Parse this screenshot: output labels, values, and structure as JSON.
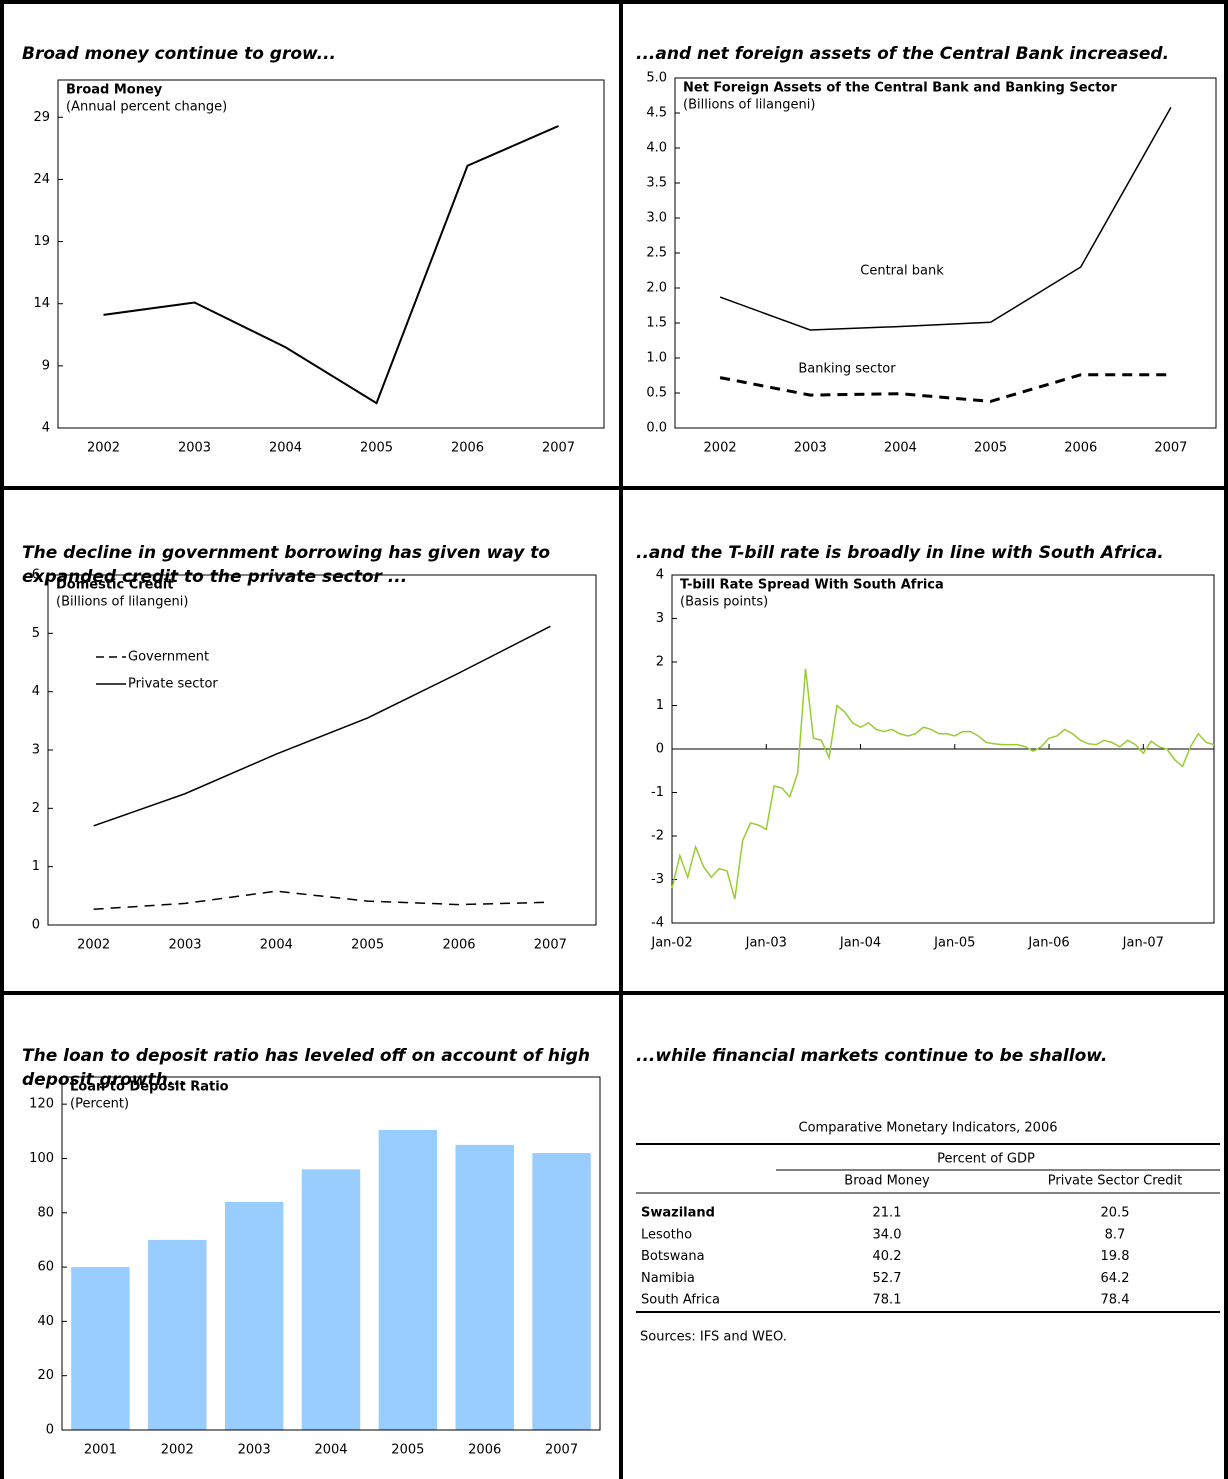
{
  "headings": [
    "Broad money continue to grow...",
    "...and net foreign assets of the Central Bank increased.",
    "The decline in government borrowing has given way to expanded credit to the private sector ...",
    "..and the T-bill rate is broadly in line with South Africa.",
    "The loan to deposit ratio has leveled off on account of high deposit growth...",
    "...while financial markets continue to be shallow."
  ],
  "chart_data": [
    {
      "type": "line",
      "title": "Broad Money",
      "subtitle": "(Annual percent change)",
      "categories": [
        "2002",
        "2003",
        "2004",
        "2005",
        "2006",
        "2007"
      ],
      "values": [
        13.1,
        14.1,
        10.5,
        6.0,
        25.1,
        28.3
      ],
      "color": "#000000",
      "ylim": [
        4,
        32
      ],
      "yticks": [
        4,
        9,
        14,
        19,
        24,
        29
      ]
    },
    {
      "type": "line",
      "title": "Net Foreign Assets of the Central Bank and Banking Sector",
      "subtitle": "(Billions of lilangeni)",
      "categories": [
        "2002",
        "2003",
        "2004",
        "2005",
        "2006",
        "2007"
      ],
      "series": [
        {
          "name": "Central bank",
          "color": "#000000",
          "values": [
            1.87,
            1.4,
            1.45,
            1.51,
            2.3,
            4.58
          ]
        },
        {
          "name": "Banking sector",
          "color": "#000000",
          "dashed": true,
          "values": [
            0.72,
            0.47,
            0.49,
            0.38,
            0.76,
            0.76
          ]
        }
      ],
      "ylim": [
        0,
        5
      ],
      "yticks": [
        {
          "value": 0,
          "label": "0.0"
        },
        0.5,
        {
          "value": 1,
          "label": "1.0"
        },
        1.5,
        {
          "value": 2,
          "label": "2.0"
        },
        2.5,
        {
          "value": 3,
          "label": "3.0"
        },
        3.5,
        {
          "value": 4,
          "label": "4.0"
        },
        4.5,
        {
          "value": 5,
          "label": "5.0"
        }
      ]
    },
    {
      "type": "line",
      "title": "Domestic Credit",
      "subtitle": "(Billions of lilangeni)",
      "categories": [
        "2002",
        "2003",
        "2004",
        "2005",
        "2006",
        "2007"
      ],
      "series": [
        {
          "name": "Government",
          "color": "#000000",
          "dashed": true,
          "values": [
            0.27,
            0.37,
            0.58,
            0.41,
            0.35,
            0.39
          ]
        },
        {
          "name": "Private sector",
          "color": "#000000",
          "values": [
            1.7,
            2.25,
            2.93,
            3.55,
            4.32,
            5.12
          ]
        }
      ],
      "ylim": [
        0,
        6
      ],
      "yticks": [
        0,
        1,
        2,
        3,
        4,
        5,
        6
      ],
      "legend": "upper left"
    },
    {
      "type": "line",
      "title": "T-bill Rate Spread With South Africa",
      "subtitle": "(Basis points)",
      "categories": [
        "Jan-02",
        null,
        null,
        null,
        null,
        null,
        null,
        null,
        null,
        null,
        null,
        null,
        "Jan-03",
        null,
        null,
        null,
        null,
        null,
        null,
        null,
        null,
        null,
        null,
        null,
        "Jan-04",
        null,
        null,
        null,
        null,
        null,
        null,
        null,
        null,
        null,
        null,
        null,
        "Jan-05",
        null,
        null,
        null,
        null,
        null,
        null,
        null,
        null,
        null,
        null,
        null,
        "Jan-06",
        null,
        null,
        null,
        null,
        null,
        null,
        null,
        null,
        null,
        null,
        null,
        "Jan-07",
        null,
        null,
        null,
        null,
        null,
        null,
        null,
        null,
        null
      ],
      "values": [
        -3.2,
        -2.45,
        -2.95,
        -2.25,
        -2.7,
        -2.95,
        -2.75,
        -2.8,
        -3.45,
        -2.1,
        -1.7,
        -1.75,
        -1.85,
        -0.85,
        -0.9,
        -1.1,
        -0.55,
        1.85,
        0.25,
        0.2,
        -0.2,
        1.0,
        0.85,
        0.6,
        0.5,
        0.6,
        0.45,
        0.4,
        0.45,
        0.35,
        0.3,
        0.35,
        0.5,
        0.45,
        0.35,
        0.35,
        0.3,
        0.4,
        0.4,
        0.3,
        0.15,
        0.12,
        0.1,
        0.1,
        0.1,
        0.05,
        -0.05,
        0.05,
        0.25,
        0.3,
        0.45,
        0.35,
        0.2,
        0.12,
        0.1,
        0.2,
        0.15,
        0.05,
        0.2,
        0.1,
        -0.1,
        0.18,
        0.05,
        0.0,
        -0.25,
        -0.4,
        0.05,
        0.35,
        0.15,
        0.1
      ],
      "color": "#99cc33",
      "ylim": [
        -4,
        4
      ],
      "yticks": [
        -4,
        -3,
        -2,
        -1,
        0,
        1,
        2,
        3,
        4
      ]
    },
    {
      "type": "bar",
      "title": "Loan to Deposit Ratio",
      "subtitle": "(Percent)",
      "categories": [
        "2001",
        "2002",
        "2003",
        "2004",
        "2005",
        "2006",
        "2007"
      ],
      "values": [
        60,
        70,
        84,
        96,
        110.5,
        105,
        102
      ],
      "color": "#99ccff",
      "ylim": [
        0,
        130
      ],
      "yticks": [
        0,
        20,
        40,
        60,
        80,
        100,
        120
      ]
    }
  ],
  "table": {
    "title": "Comparative Monetary Indicators, 2006",
    "group_header": "Percent of GDP",
    "columns": [
      "Broad Money",
      "Private Sector Credit"
    ],
    "rows": [
      [
        "Swaziland",
        "21.1",
        "20.5"
      ],
      [
        "Lesotho",
        "34.0",
        "8.7"
      ],
      [
        "Botswana",
        "40.2",
        "19.8"
      ],
      [
        "Namibia",
        "52.7",
        "64.2"
      ],
      [
        "South Africa",
        "78.1",
        "78.4"
      ]
    ],
    "source": "Sources: IFS and WEO."
  }
}
